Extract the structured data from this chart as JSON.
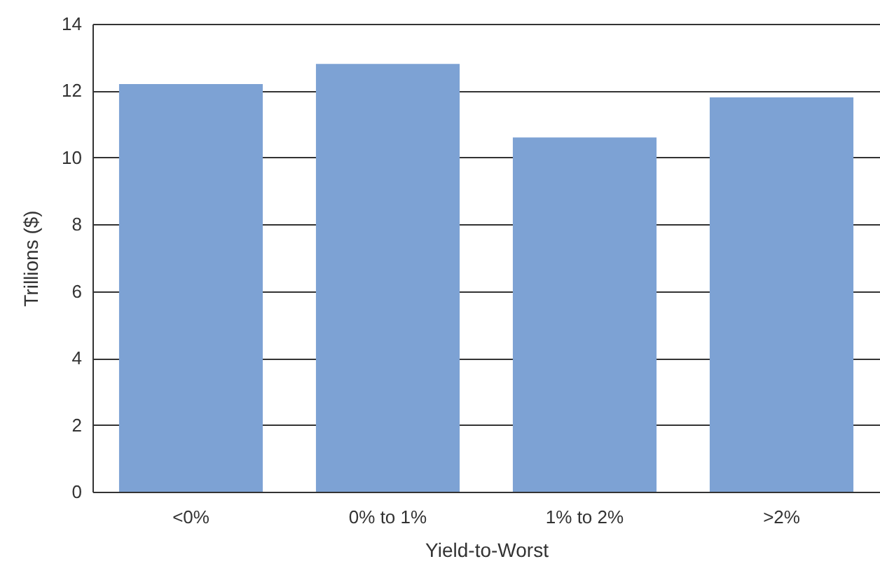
{
  "chart_data": {
    "type": "bar",
    "xlabel": "Yield-to-Worst",
    "ylabel": "Trillions ($)",
    "categories": [
      "<0%",
      "0% to 1%",
      "1% to 2%",
      ">2%"
    ],
    "values": [
      12.2,
      12.8,
      10.6,
      11.8
    ],
    "color": "#7da2d4",
    "ylim": [
      0,
      14
    ],
    "yticks": [
      0,
      2,
      4,
      6,
      8,
      10,
      12,
      14
    ],
    "grid": "y"
  }
}
